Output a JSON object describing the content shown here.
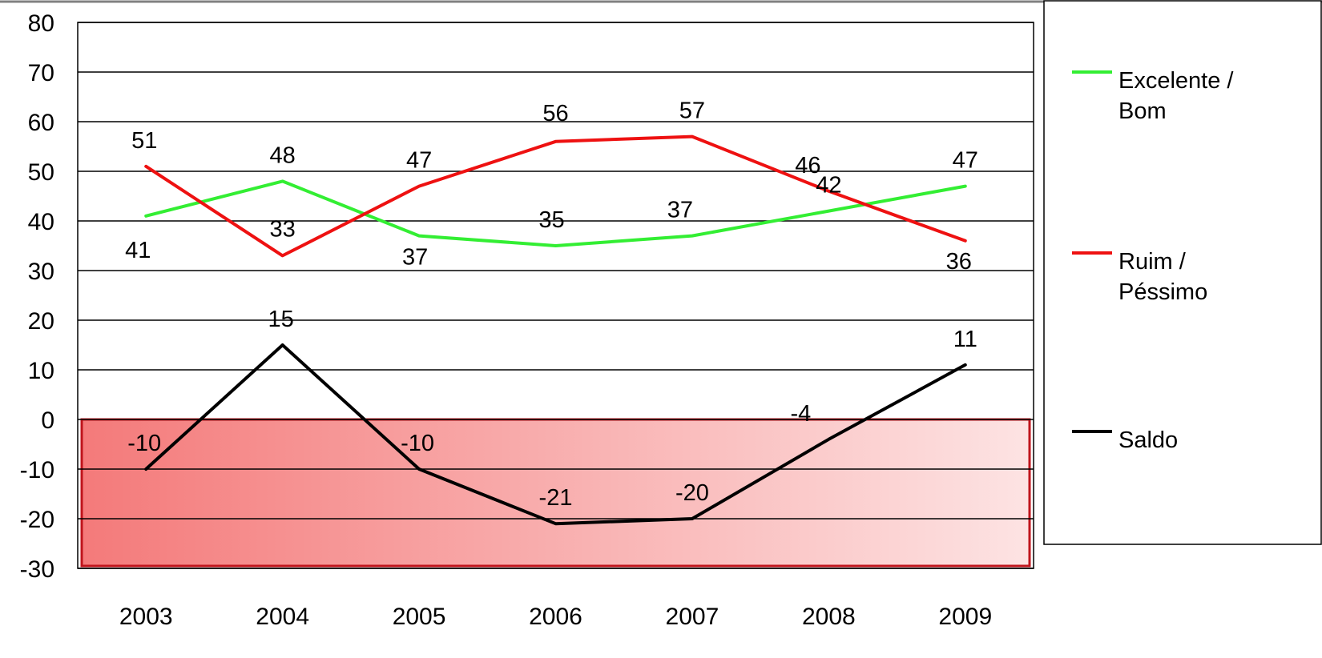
{
  "chart_data": {
    "type": "line",
    "title": "",
    "xlabel": "",
    "ylabel": "",
    "categories": [
      "2003",
      "2004",
      "2005",
      "2006",
      "2007",
      "2008",
      "2009"
    ],
    "ylim": [
      -30,
      80
    ],
    "yticks": [
      80,
      70,
      60,
      50,
      40,
      30,
      20,
      10,
      0,
      -10,
      -20,
      -30
    ],
    "grid": true,
    "legend_position": "right",
    "negative_region": {
      "from": -30,
      "to": 0,
      "color_start": "#f47a7a",
      "color_end": "#fde3e3",
      "border": "#c0141c"
    },
    "series": [
      {
        "name": "Excelente / Bom",
        "legend_lines": [
          "Excelente /",
          "Bom"
        ],
        "color": "#33ee33",
        "values": [
          41,
          48,
          37,
          35,
          37,
          42,
          47
        ],
        "labels": [
          "41",
          "48",
          "37",
          "35",
          "37",
          "42",
          "47"
        ]
      },
      {
        "name": "Ruim / Péssimo",
        "legend_lines": [
          "Ruim /",
          "Péssimo"
        ],
        "color": "#ee1111",
        "values": [
          51,
          33,
          47,
          56,
          57,
          46,
          36
        ],
        "labels": [
          "51",
          "33",
          "47",
          "56",
          "57",
          "46",
          "36"
        ]
      },
      {
        "name": "Saldo",
        "legend_lines": [
          "Saldo"
        ],
        "color": "#000000",
        "values": [
          -10,
          15,
          -10,
          -21,
          -20,
          -4,
          11
        ],
        "labels": [
          "-10",
          "15",
          "-10",
          "-21",
          "-20",
          "-4",
          "11"
        ]
      }
    ]
  }
}
